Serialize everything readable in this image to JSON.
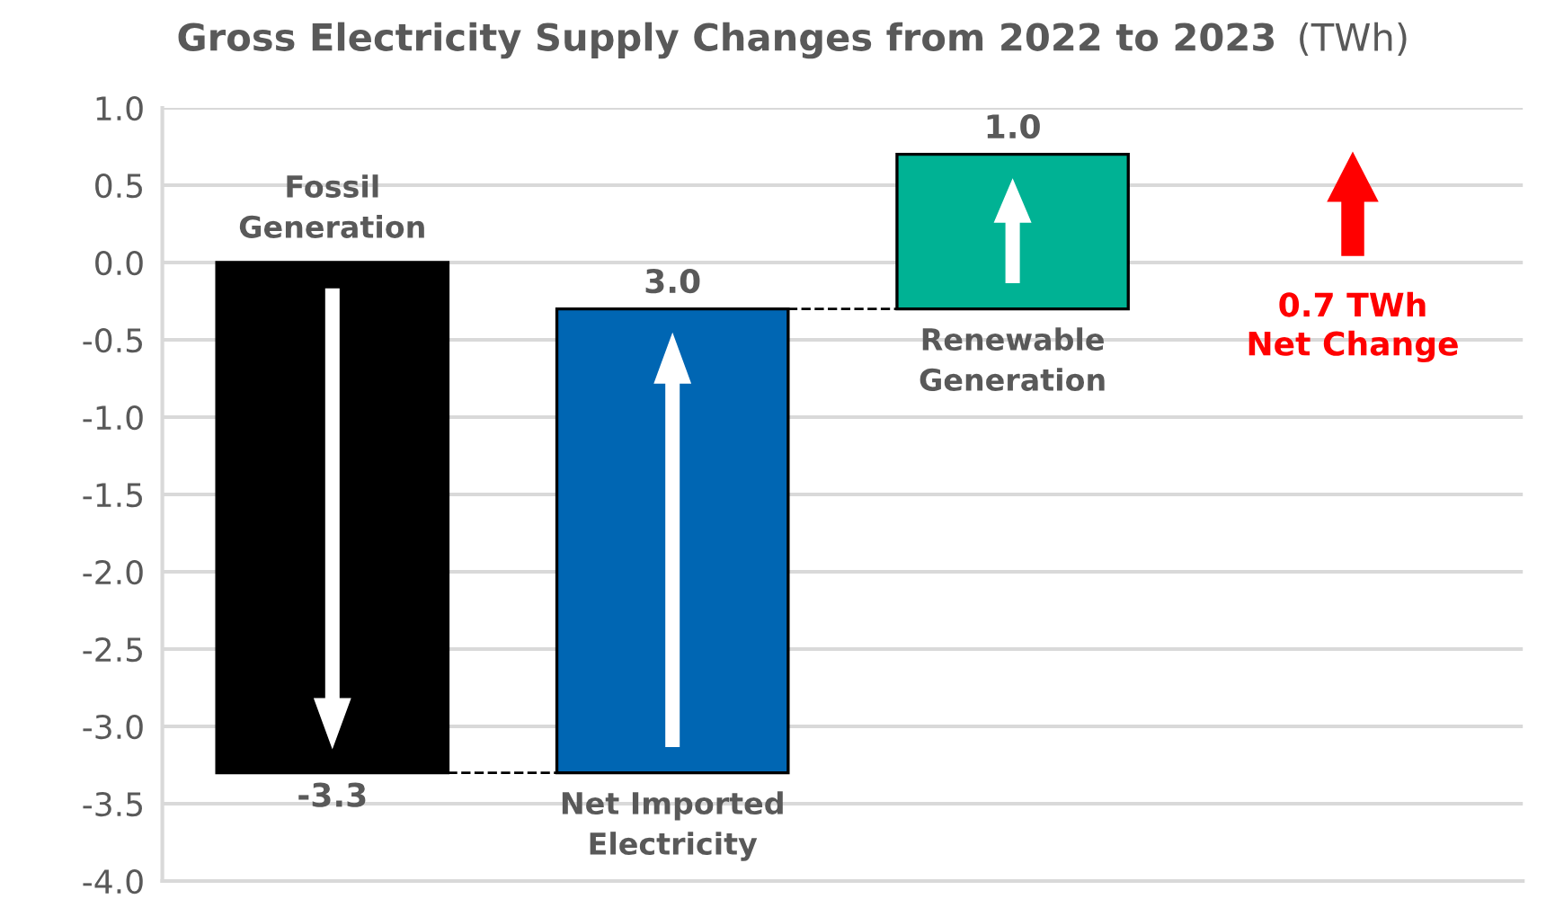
{
  "chart_data": {
    "type": "bar",
    "title": "Gross Electricity Supply Changes from 2022 to 2023",
    "subtitle": "(TWh)",
    "categories": [
      "Fossil Generation",
      "Net Imported Electricity",
      "Renewable Generation"
    ],
    "values": [
      -3.3,
      3.0,
      1.0
    ],
    "base": [
      0,
      -3.3,
      -0.3
    ],
    "colors": [
      "#000000",
      "#0066b3",
      "#00b294"
    ],
    "value_labels": [
      "-3.3",
      "3.0",
      "1.0"
    ],
    "annotations": [
      "0.7 TWh\nNet Change"
    ],
    "ylim": [
      -4.0,
      1.0
    ],
    "yticks": [
      {
        "value": -4.0,
        "label": "-4.0"
      },
      {
        "value": -3.5,
        "label": "-3.5"
      },
      {
        "value": -3.0,
        "label": "-3.0"
      },
      {
        "value": -2.5,
        "label": "-2.5"
      },
      {
        "value": -2.0,
        "label": "-2.0"
      },
      {
        "value": -1.5,
        "label": "-1.5"
      },
      {
        "value": -1.0,
        "label": "-1.0"
      },
      {
        "value": -0.5,
        "label": "-0.5"
      },
      {
        "value": 0.0,
        "label": "0.0"
      },
      {
        "value": 0.5,
        "label": "0.5"
      },
      {
        "value": 1.0,
        "label": "1.0"
      }
    ],
    "grid": "y",
    "tick_labels": "y"
  }
}
